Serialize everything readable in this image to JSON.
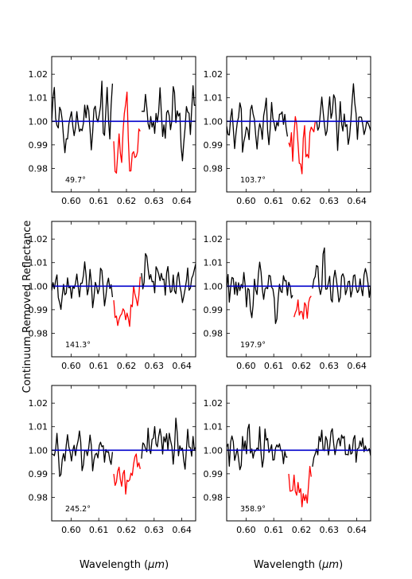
{
  "figure": {
    "ylabel": "Continuum Removed Reflectance",
    "xlabel_prefix": "Wavelength (",
    "xlabel_unit": "μm",
    "xlabel_suffix": ")"
  },
  "chart_data": [
    {
      "type": "line",
      "annotation": "49.7°",
      "xlim": [
        0.593,
        0.645
      ],
      "ylim": [
        0.97,
        1.0275
      ],
      "xticks": [
        "0.60",
        "0.61",
        "0.62",
        "0.63",
        "0.64"
      ],
      "yticks": [
        "0.98",
        "0.99",
        "1.00",
        "1.01",
        "1.02"
      ],
      "continuum": 1.0,
      "band": [
        0.615,
        0.625
      ],
      "colors": {
        "spectrum": "#000000",
        "band": "#ff0000",
        "continuum": "#0000cc"
      },
      "seed": 11,
      "noise": 0.0078,
      "depth": 0.011,
      "x": [
        0.593,
        0.594,
        0.595,
        0.596,
        0.597,
        0.598,
        0.599,
        0.6,
        0.601,
        0.602,
        0.603,
        0.604,
        0.605,
        0.606,
        0.607,
        0.608,
        0.609,
        0.61,
        0.611,
        0.612,
        0.613,
        0.614,
        0.615,
        0.616,
        0.617,
        0.618,
        0.619,
        0.62,
        0.621,
        0.622,
        0.623,
        0.624,
        0.625,
        0.626,
        0.627,
        0.628,
        0.629,
        0.63,
        0.631,
        0.632,
        0.633,
        0.634,
        0.635,
        0.636,
        0.637,
        0.638,
        0.639,
        0.64,
        0.641,
        0.642,
        0.643,
        0.644,
        0.645
      ],
      "y": [
        1.005,
        1.017,
        0.992,
        1.008,
        0.999,
        0.987,
        1.0,
        1.001,
        0.998,
        1.002,
        0.995,
        0.999,
        1.004,
        1.011,
        0.991,
        0.998,
        1.009,
        0.994,
        1.016,
        0.99,
        1.01,
        0.996,
        1.012,
        0.977,
        1.003,
        0.981,
        1.008,
        1.019,
        0.983,
        0.996,
        0.988,
        0.992,
        0.999,
        1.004,
        1.008,
        0.997,
        1.003,
        0.992,
        1.002,
        1.011,
        0.996,
        0.994,
        1.005,
        0.999,
        1.013,
        1.0,
        1.005,
        0.985,
        1.001,
        1.008,
        0.995,
        1.01,
        1.004
      ]
    },
    {
      "type": "line",
      "annotation": "103.7°",
      "xlim": [
        0.593,
        0.645
      ],
      "ylim": [
        0.97,
        1.0275
      ],
      "xticks": [
        "0.60",
        "0.61",
        "0.62",
        "0.63",
        "0.64"
      ],
      "yticks": [
        "0.98",
        "0.99",
        "1.00",
        "1.01",
        "1.02"
      ],
      "continuum": 1.0,
      "band": [
        0.615,
        0.625
      ],
      "colors": {
        "spectrum": "#000000",
        "band": "#ff0000",
        "continuum": "#0000cc"
      },
      "seed": 23,
      "noise": 0.0072,
      "depth": 0.008,
      "x": [
        0.593,
        0.594,
        0.595,
        0.596,
        0.597,
        0.598,
        0.599,
        0.6,
        0.601,
        0.602,
        0.603,
        0.604,
        0.605,
        0.606,
        0.607,
        0.608,
        0.609,
        0.61,
        0.611,
        0.612,
        0.613,
        0.614,
        0.615,
        0.616,
        0.617,
        0.618,
        0.619,
        0.62,
        0.621,
        0.622,
        0.623,
        0.624,
        0.625,
        0.626,
        0.627,
        0.628,
        0.629,
        0.63,
        0.631,
        0.632,
        0.633,
        0.634,
        0.635,
        0.636,
        0.637,
        0.638,
        0.639,
        0.64,
        0.641,
        0.642,
        0.643,
        0.644,
        0.645
      ],
      "y": [
        1.003,
        0.995,
        1.009,
        0.99,
        1.0,
        1.006,
        0.985,
        1.002,
        0.994,
        1.007,
        0.998,
        0.989,
        1.004,
        0.996,
        1.012,
        0.991,
        1.005,
        0.999,
        0.996,
        1.001,
        1.003,
        0.998,
        0.993,
        0.999,
        0.986,
        1.011,
        0.99,
        0.984,
        1.0,
        0.988,
        0.995,
        0.999,
        1.004,
        0.997,
        1.01,
        1.002,
        0.992,
        1.013,
        0.998,
        1.017,
        0.99,
        1.006,
        0.996,
        1.001,
        0.989,
        1.004,
        1.014,
        0.993,
        1.008,
        0.998,
        0.995,
        1.003,
        0.997
      ]
    },
    {
      "type": "line",
      "annotation": "141.3°",
      "xlim": [
        0.593,
        0.645
      ],
      "ylim": [
        0.97,
        1.0275
      ],
      "xticks": [
        "0.60",
        "0.61",
        "0.62",
        "0.63",
        "0.64"
      ],
      "yticks": [
        "0.98",
        "0.99",
        "1.00",
        "1.01",
        "1.02"
      ],
      "continuum": 1.0,
      "band": [
        0.615,
        0.625
      ],
      "colors": {
        "spectrum": "#000000",
        "band": "#ff0000",
        "continuum": "#0000cc"
      },
      "seed": 37,
      "noise": 0.0055,
      "depth": 0.007,
      "x": [
        0.593,
        0.594,
        0.595,
        0.596,
        0.597,
        0.598,
        0.599,
        0.6,
        0.601,
        0.602,
        0.603,
        0.604,
        0.605,
        0.606,
        0.607,
        0.608,
        0.609,
        0.61,
        0.611,
        0.612,
        0.613,
        0.614,
        0.615,
        0.616,
        0.617,
        0.618,
        0.619,
        0.62,
        0.621,
        0.622,
        0.623,
        0.624,
        0.625,
        0.626,
        0.627,
        0.628,
        0.629,
        0.63,
        0.631,
        0.632,
        0.633,
        0.634,
        0.635,
        0.636,
        0.637,
        0.638,
        0.639,
        0.64,
        0.641,
        0.642,
        0.643,
        0.644,
        0.645
      ],
      "y": [
        1.002,
        0.995,
        1.004,
        0.989,
        1.001,
        0.998,
        1.003,
        0.993,
        1.0,
        1.006,
        0.996,
        1.002,
        1.011,
        0.997,
        1.005,
        0.99,
        1.003,
        0.998,
        1.007,
        0.994,
        0.999,
        1.002,
        0.996,
        0.992,
        0.988,
        0.995,
        0.99,
        0.993,
        0.986,
        0.998,
        1.001,
        0.994,
        1.007,
        0.997,
        1.012,
        1.003,
        1.008,
        0.995,
        1.01,
        1.001,
        1.006,
        0.998,
        1.009,
        0.995,
        1.002,
        0.999,
        1.004,
        0.992,
        1.001,
        1.005,
        0.997,
        1.003,
        1.007
      ]
    },
    {
      "type": "line",
      "annotation": "197.9°",
      "xlim": [
        0.593,
        0.645
      ],
      "ylim": [
        0.97,
        1.0275
      ],
      "xticks": [
        "0.60",
        "0.61",
        "0.62",
        "0.63",
        "0.64"
      ],
      "yticks": [
        "0.98",
        "0.99",
        "1.00",
        "1.01",
        "1.02"
      ],
      "continuum": 1.0,
      "band": [
        0.617,
        0.624
      ],
      "colors": {
        "spectrum": "#000000",
        "band": "#ff0000",
        "continuum": "#0000cc"
      },
      "seed": 53,
      "noise": 0.0065,
      "depth": 0.007,
      "x": [
        0.593,
        0.594,
        0.595,
        0.596,
        0.597,
        0.598,
        0.599,
        0.6,
        0.601,
        0.602,
        0.603,
        0.604,
        0.605,
        0.606,
        0.607,
        0.608,
        0.609,
        0.61,
        0.611,
        0.612,
        0.613,
        0.614,
        0.615,
        0.616,
        0.617,
        0.618,
        0.619,
        0.62,
        0.621,
        0.622,
        0.623,
        0.624,
        0.625,
        0.626,
        0.627,
        0.628,
        0.629,
        0.63,
        0.631,
        0.632,
        0.633,
        0.634,
        0.635,
        0.636,
        0.637,
        0.638,
        0.639,
        0.64,
        0.641,
        0.642,
        0.643,
        0.644,
        0.645
      ],
      "y": [
        1.004,
        0.997,
        1.007,
        0.995,
        1.002,
        0.999,
        1.005,
        0.994,
        1.001,
        0.985,
        1.004,
        0.998,
        1.007,
        0.996,
        1.003,
        0.999,
        1.006,
        0.997,
        0.983,
        1.005,
        0.999,
        1.002,
        0.996,
        1.001,
        0.994,
        0.989,
        0.998,
        0.987,
        0.993,
        0.991,
        0.999,
        0.996,
        1.003,
        1.009,
        0.996,
        1.018,
        0.998,
        1.006,
        0.993,
        1.004,
        1.001,
        0.995,
        1.008,
        0.999,
        1.002,
        0.996,
        1.005,
        0.999,
        1.003,
        0.997,
        1.004,
        1.001,
        0.996
      ]
    },
    {
      "type": "line",
      "annotation": "245.2°",
      "xlim": [
        0.593,
        0.645
      ],
      "ylim": [
        0.97,
        1.0275
      ],
      "xticks": [
        "0.60",
        "0.61",
        "0.62",
        "0.63",
        "0.64"
      ],
      "yticks": [
        "0.98",
        "0.99",
        "1.00",
        "1.01",
        "1.02"
      ],
      "continuum": 1.0,
      "band": [
        0.615,
        0.625
      ],
      "colors": {
        "spectrum": "#000000",
        "band": "#ff0000",
        "continuum": "#0000cc"
      },
      "seed": 71,
      "noise": 0.0065,
      "depth": 0.008,
      "x": [
        0.593,
        0.594,
        0.595,
        0.596,
        0.597,
        0.598,
        0.599,
        0.6,
        0.601,
        0.602,
        0.603,
        0.604,
        0.605,
        0.606,
        0.607,
        0.608,
        0.609,
        0.61,
        0.611,
        0.612,
        0.613,
        0.614,
        0.615,
        0.616,
        0.617,
        0.618,
        0.619,
        0.62,
        0.621,
        0.622,
        0.623,
        0.624,
        0.625,
        0.626,
        0.627,
        0.628,
        0.629,
        0.63,
        0.631,
        0.632,
        0.633,
        0.634,
        0.635,
        0.636,
        0.637,
        0.638,
        0.639,
        0.64,
        0.641,
        0.642,
        0.643,
        0.644,
        0.645
      ],
      "y": [
        1.003,
        0.996,
        1.005,
        0.988,
        1.001,
        0.997,
        1.004,
        0.993,
        1.002,
        0.999,
        1.006,
        0.995,
        1.001,
        0.998,
        1.005,
        0.992,
        1.002,
        0.997,
        1.004,
        0.994,
        1.001,
        0.998,
        0.996,
        0.983,
        0.997,
        0.988,
        0.993,
        0.99,
        0.995,
        0.989,
        1.001,
        0.994,
        0.998,
        1.003,
        0.996,
        1.007,
        0.999,
        1.012,
        1.003,
        1.009,
        0.997,
        1.005,
        1.001,
        1.008,
        0.995,
        1.014,
        0.998,
        1.004,
        0.992,
        1.006,
        1.0,
        1.003,
        0.997
      ]
    },
    {
      "type": "line",
      "annotation": "358.9°",
      "xlim": [
        0.593,
        0.645
      ],
      "ylim": [
        0.97,
        1.0275
      ],
      "xticks": [
        "0.60",
        "0.61",
        "0.62",
        "0.63",
        "0.64"
      ],
      "yticks": [
        "0.98",
        "0.99",
        "1.00",
        "1.01",
        "1.02"
      ],
      "continuum": 1.0,
      "band": [
        0.615,
        0.624
      ],
      "colors": {
        "spectrum": "#000000",
        "band": "#ff0000",
        "continuum": "#0000cc"
      },
      "seed": 89,
      "noise": 0.0065,
      "depth": 0.012,
      "x": [
        0.593,
        0.594,
        0.595,
        0.596,
        0.597,
        0.598,
        0.599,
        0.6,
        0.601,
        0.602,
        0.603,
        0.604,
        0.605,
        0.606,
        0.607,
        0.608,
        0.609,
        0.61,
        0.611,
        0.612,
        0.613,
        0.614,
        0.615,
        0.616,
        0.617,
        0.618,
        0.619,
        0.62,
        0.621,
        0.622,
        0.623,
        0.624,
        0.625,
        0.626,
        0.627,
        0.628,
        0.629,
        0.63,
        0.631,
        0.632,
        0.633,
        0.634,
        0.635,
        0.636,
        0.637,
        0.638,
        0.639,
        0.64,
        0.641,
        0.642,
        0.643,
        0.644,
        0.645
      ],
      "y": [
        1.006,
        0.995,
        1.008,
        0.997,
        1.002,
        0.993,
        1.005,
        1.0,
        1.011,
        0.996,
        1.003,
        0.998,
        1.007,
        0.994,
        1.013,
        0.999,
        1.004,
        0.996,
        1.006,
        0.998,
        1.002,
        0.995,
        1.0,
        0.982,
        0.994,
        0.986,
        0.993,
        0.984,
        0.989,
        0.985,
        1.0,
        0.995,
        1.003,
        0.997,
        1.009,
        1.001,
        1.005,
        0.998,
        1.007,
        0.994,
        1.004,
        1.0,
        1.006,
        0.997,
        1.003,
        0.999,
        1.005,
        0.995,
        1.002,
        1.007,
        0.998,
        1.003,
        0.999
      ]
    }
  ]
}
